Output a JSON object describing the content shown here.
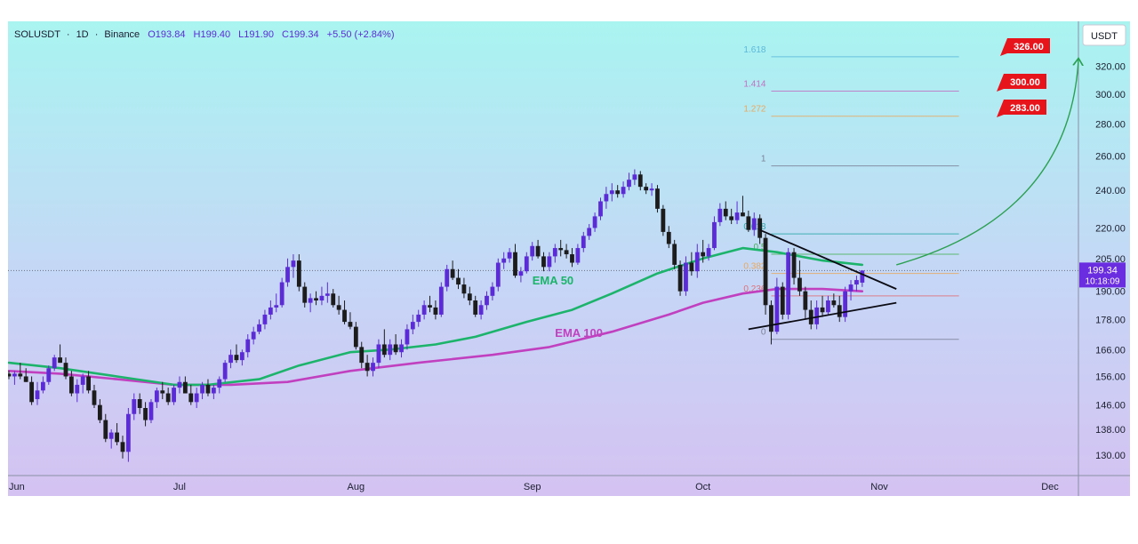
{
  "header": {
    "symbol": "SOLUSDT",
    "sep1": "·",
    "interval": "1D",
    "sep2": "·",
    "exchange": "Binance",
    "open": "O193.84",
    "high": "H199.40",
    "low": "L191.90",
    "close": "C199.34",
    "change": "+5.50 (+2.84%)"
  },
  "currency_button": "USDT",
  "colors": {
    "bull": "#5b2bd6",
    "bear": "#1c1c1c",
    "ema50": "#1cb36b",
    "ema100": "#c040c0",
    "target": "#e8141c",
    "arc": "#2ca052",
    "price_tag": "#6a2ee0"
  },
  "chart_data": {
    "type": "candlestick",
    "x_axis": {
      "type": "date",
      "ticks": [
        {
          "date": "2024-06-01",
          "label": "Jun"
        },
        {
          "date": "2024-07-01",
          "label": "Jul"
        },
        {
          "date": "2024-08-01",
          "label": "Aug"
        },
        {
          "date": "2024-09-01",
          "label": "Sep"
        },
        {
          "date": "2024-10-01",
          "label": "Oct"
        },
        {
          "date": "2024-11-01",
          "label": "Nov"
        },
        {
          "date": "2024-12-01",
          "label": "Dec"
        }
      ]
    },
    "y_axis": {
      "scale": "log",
      "range": [
        124,
        355
      ],
      "ticks": [
        {
          "value": 130,
          "label": "130.00"
        },
        {
          "value": 138,
          "label": "138.00"
        },
        {
          "value": 146,
          "label": "146.00"
        },
        {
          "value": 156,
          "label": "156.00"
        },
        {
          "value": 166,
          "label": "166.00"
        },
        {
          "value": 178,
          "label": "178.00"
        },
        {
          "value": 190,
          "label": "190.00"
        },
        {
          "value": 205,
          "label": "205.00"
        },
        {
          "value": 220,
          "label": "220.00"
        },
        {
          "value": 240,
          "label": "240.00"
        },
        {
          "value": 260,
          "label": "260.00"
        },
        {
          "value": 280,
          "label": "280.00"
        },
        {
          "value": 300,
          "label": "300.00"
        },
        {
          "value": 320,
          "label": "320.00"
        }
      ]
    },
    "ohlc": [
      [
        "2024-06-01",
        157,
        158,
        155,
        156
      ],
      [
        "2024-06-02",
        156,
        158,
        153,
        157
      ],
      [
        "2024-06-03",
        157,
        161,
        155,
        156
      ],
      [
        "2024-06-04",
        156,
        159,
        154,
        154
      ],
      [
        "2024-06-05",
        154,
        156,
        146,
        147
      ],
      [
        "2024-06-06",
        148,
        154,
        146,
        151
      ],
      [
        "2024-06-07",
        151,
        156,
        150,
        154
      ],
      [
        "2024-06-08",
        154,
        160,
        153,
        159
      ],
      [
        "2024-06-09",
        159,
        164,
        158,
        163
      ],
      [
        "2024-06-10",
        163,
        168,
        161,
        161
      ],
      [
        "2024-06-11",
        161,
        163,
        155,
        156
      ],
      [
        "2024-06-12",
        156,
        158,
        149,
        150
      ],
      [
        "2024-06-13",
        150,
        155,
        147,
        153
      ],
      [
        "2024-06-14",
        153,
        157,
        150,
        156
      ],
      [
        "2024-06-15",
        156,
        158,
        150,
        151
      ],
      [
        "2024-06-16",
        151,
        153,
        145,
        146
      ],
      [
        "2024-06-17",
        146,
        148,
        140,
        141
      ],
      [
        "2024-06-18",
        141,
        143,
        134,
        135
      ],
      [
        "2024-06-19",
        135,
        138,
        132,
        137
      ],
      [
        "2024-06-20",
        137,
        140,
        133,
        134
      ],
      [
        "2024-06-21",
        134,
        136,
        129,
        131
      ],
      [
        "2024-06-22",
        131,
        145,
        128,
        143
      ],
      [
        "2024-06-23",
        143,
        150,
        141,
        148
      ],
      [
        "2024-06-24",
        148,
        150,
        143,
        145
      ],
      [
        "2024-06-25",
        145,
        147,
        139,
        141
      ],
      [
        "2024-06-26",
        141,
        148,
        140,
        147
      ],
      [
        "2024-06-27",
        147,
        152,
        145,
        151
      ],
      [
        "2024-06-28",
        151,
        154,
        148,
        150
      ],
      [
        "2024-06-29",
        150,
        152,
        146,
        147
      ],
      [
        "2024-06-30",
        147,
        153,
        146,
        152
      ],
      [
        "2024-07-01",
        152,
        156,
        150,
        154
      ],
      [
        "2024-07-02",
        154,
        156,
        150,
        150
      ],
      [
        "2024-07-03",
        150,
        153,
        146,
        147
      ],
      [
        "2024-07-04",
        147,
        152,
        145,
        150
      ],
      [
        "2024-07-05",
        150,
        154,
        148,
        153
      ],
      [
        "2024-07-06",
        153,
        155,
        149,
        150
      ],
      [
        "2024-07-07",
        150,
        153,
        148,
        152
      ],
      [
        "2024-07-08",
        152,
        156,
        150,
        155
      ],
      [
        "2024-07-09",
        155,
        162,
        154,
        161
      ],
      [
        "2024-07-10",
        161,
        166,
        159,
        164
      ],
      [
        "2024-07-11",
        164,
        168,
        161,
        162
      ],
      [
        "2024-07-12",
        162,
        166,
        160,
        165
      ],
      [
        "2024-07-13",
        165,
        172,
        163,
        170
      ],
      [
        "2024-07-14",
        170,
        175,
        168,
        173
      ],
      [
        "2024-07-15",
        173,
        178,
        172,
        176
      ],
      [
        "2024-07-16",
        176,
        182,
        174,
        180
      ],
      [
        "2024-07-17",
        180,
        186,
        178,
        183
      ],
      [
        "2024-07-18",
        183,
        189,
        181,
        184
      ],
      [
        "2024-07-19",
        184,
        196,
        183,
        194
      ],
      [
        "2024-07-20",
        194,
        205,
        192,
        201
      ],
      [
        "2024-07-21",
        201,
        207,
        196,
        204
      ],
      [
        "2024-07-22",
        204,
        207,
        190,
        192
      ],
      [
        "2024-07-23",
        192,
        194,
        183,
        185
      ],
      [
        "2024-07-24",
        185,
        189,
        181,
        187
      ],
      [
        "2024-07-25",
        187,
        190,
        184,
        186
      ],
      [
        "2024-07-26",
        186,
        192,
        184,
        188
      ],
      [
        "2024-07-27",
        188,
        194,
        185,
        189
      ],
      [
        "2024-07-28",
        189,
        191,
        183,
        184
      ],
      [
        "2024-07-29",
        184,
        188,
        180,
        182
      ],
      [
        "2024-07-30",
        182,
        186,
        176,
        177
      ],
      [
        "2024-07-31",
        177,
        181,
        174,
        175
      ],
      [
        "2024-08-01",
        175,
        177,
        166,
        167
      ],
      [
        "2024-08-02",
        167,
        169,
        159,
        161
      ],
      [
        "2024-08-03",
        161,
        164,
        156,
        158
      ],
      [
        "2024-08-04",
        158,
        163,
        156,
        161
      ],
      [
        "2024-08-05",
        161,
        170,
        159,
        168
      ],
      [
        "2024-08-06",
        168,
        174,
        163,
        164
      ],
      [
        "2024-08-07",
        164,
        170,
        162,
        168
      ],
      [
        "2024-08-08",
        168,
        172,
        164,
        165
      ],
      [
        "2024-08-09",
        165,
        170,
        163,
        168
      ],
      [
        "2024-08-10",
        168,
        176,
        166,
        174
      ],
      [
        "2024-08-11",
        174,
        180,
        172,
        177
      ],
      [
        "2024-08-12",
        177,
        182,
        175,
        180
      ],
      [
        "2024-08-13",
        180,
        186,
        178,
        184
      ],
      [
        "2024-08-14",
        184,
        188,
        181,
        183
      ],
      [
        "2024-08-15",
        183,
        186,
        178,
        180
      ],
      [
        "2024-08-16",
        180,
        194,
        179,
        192
      ],
      [
        "2024-08-17",
        192,
        202,
        190,
        200
      ],
      [
        "2024-08-18",
        200,
        204,
        195,
        196
      ],
      [
        "2024-08-19",
        196,
        200,
        191,
        193
      ],
      [
        "2024-08-20",
        193,
        196,
        187,
        189
      ],
      [
        "2024-08-21",
        189,
        192,
        184,
        186
      ],
      [
        "2024-08-22",
        186,
        188,
        179,
        180
      ],
      [
        "2024-08-23",
        180,
        186,
        178,
        184
      ],
      [
        "2024-08-24",
        184,
        190,
        182,
        188
      ],
      [
        "2024-08-25",
        188,
        194,
        186,
        192
      ],
      [
        "2024-08-26",
        192,
        205,
        190,
        203
      ],
      [
        "2024-08-27",
        203,
        208,
        200,
        205
      ],
      [
        "2024-08-28",
        205,
        210,
        203,
        208
      ],
      [
        "2024-08-29",
        208,
        212,
        196,
        197
      ],
      [
        "2024-08-30",
        197,
        201,
        194,
        199
      ],
      [
        "2024-08-31",
        199,
        208,
        198,
        206
      ],
      [
        "2024-09-01",
        206,
        213,
        204,
        211
      ],
      [
        "2024-09-02",
        211,
        214,
        205,
        206
      ],
      [
        "2024-09-03",
        206,
        208,
        199,
        201
      ],
      [
        "2024-09-04",
        201,
        208,
        199,
        206
      ],
      [
        "2024-09-05",
        206,
        212,
        203,
        210
      ],
      [
        "2024-09-06",
        210,
        214,
        206,
        209
      ],
      [
        "2024-09-07",
        209,
        212,
        205,
        207
      ],
      [
        "2024-09-08",
        207,
        210,
        201,
        203
      ],
      [
        "2024-09-09",
        203,
        212,
        202,
        210
      ],
      [
        "2024-09-10",
        210,
        218,
        208,
        216
      ],
      [
        "2024-09-11",
        216,
        222,
        214,
        220
      ],
      [
        "2024-09-12",
        220,
        228,
        218,
        226
      ],
      [
        "2024-09-13",
        226,
        236,
        224,
        234
      ],
      [
        "2024-09-14",
        234,
        242,
        230,
        238
      ],
      [
        "2024-09-15",
        238,
        244,
        234,
        240
      ],
      [
        "2024-09-16",
        240,
        243,
        236,
        238
      ],
      [
        "2024-09-17",
        238,
        245,
        236,
        242
      ],
      [
        "2024-09-18",
        242,
        250,
        240,
        246
      ],
      [
        "2024-09-19",
        246,
        252,
        243,
        249
      ],
      [
        "2024-09-20",
        249,
        251,
        240,
        242
      ],
      [
        "2024-09-21",
        242,
        244,
        238,
        240
      ],
      [
        "2024-09-22",
        240,
        244,
        237,
        241
      ],
      [
        "2024-09-23",
        241,
        243,
        228,
        230
      ],
      [
        "2024-09-24",
        230,
        232,
        216,
        218
      ],
      [
        "2024-09-25",
        218,
        221,
        210,
        212
      ],
      [
        "2024-09-26",
        212,
        214,
        200,
        202
      ],
      [
        "2024-09-27",
        202,
        204,
        188,
        190
      ],
      [
        "2024-09-28",
        190,
        206,
        188,
        203
      ],
      [
        "2024-09-29",
        203,
        208,
        197,
        199
      ],
      [
        "2024-09-30",
        199,
        212,
        196,
        208
      ],
      [
        "2024-10-01",
        208,
        214,
        203,
        206
      ],
      [
        "2024-10-02",
        206,
        212,
        204,
        210
      ],
      [
        "2024-10-03",
        210,
        226,
        209,
        223
      ],
      [
        "2024-10-04",
        223,
        233,
        221,
        230
      ],
      [
        "2024-10-05",
        230,
        234,
        224,
        226
      ],
      [
        "2024-10-06",
        226,
        230,
        222,
        224
      ],
      [
        "2024-10-07",
        224,
        234,
        222,
        228
      ],
      [
        "2024-10-08",
        228,
        237,
        226,
        226
      ],
      [
        "2024-10-09",
        226,
        229,
        218,
        219
      ],
      [
        "2024-10-10",
        219,
        228,
        216,
        225
      ],
      [
        "2024-10-11",
        225,
        227,
        212,
        215
      ],
      [
        "2024-10-12",
        215,
        217,
        180,
        184
      ],
      [
        "2024-10-13",
        184,
        186,
        168,
        173
      ],
      [
        "2024-10-14",
        173,
        196,
        172,
        192
      ],
      [
        "2024-10-15",
        192,
        194,
        178,
        180
      ],
      [
        "2024-10-16",
        180,
        210,
        178,
        208
      ],
      [
        "2024-10-17",
        208,
        210,
        193,
        196
      ],
      [
        "2024-10-18",
        196,
        204,
        188,
        190
      ],
      [
        "2024-10-19",
        190,
        192,
        178,
        182
      ],
      [
        "2024-10-20",
        182,
        186,
        174,
        176
      ],
      [
        "2024-10-21",
        176,
        186,
        174,
        183
      ],
      [
        "2024-10-22",
        183,
        188,
        179,
        181
      ],
      [
        "2024-10-23",
        181,
        188,
        180,
        186
      ],
      [
        "2024-10-24",
        186,
        189,
        183,
        184
      ],
      [
        "2024-10-25",
        184,
        188,
        177,
        179
      ],
      [
        "2024-10-26",
        179,
        192,
        177,
        190
      ],
      [
        "2024-10-27",
        190,
        195,
        186,
        193
      ],
      [
        "2024-10-28",
        193,
        197,
        190,
        195
      ],
      [
        "2024-10-29",
        193.84,
        199.4,
        191.9,
        199.34
      ]
    ],
    "ema50": [
      [
        "2024-06-01",
        161
      ],
      [
        "2024-06-10",
        159
      ],
      [
        "2024-06-20",
        156
      ],
      [
        "2024-06-30",
        153
      ],
      [
        "2024-07-06",
        153
      ],
      [
        "2024-07-15",
        155
      ],
      [
        "2024-07-22",
        160
      ],
      [
        "2024-07-31",
        165
      ],
      [
        "2024-08-07",
        166
      ],
      [
        "2024-08-15",
        168
      ],
      [
        "2024-08-22",
        171
      ],
      [
        "2024-08-31",
        177
      ],
      [
        "2024-09-08",
        182
      ],
      [
        "2024-09-15",
        189
      ],
      [
        "2024-09-23",
        198
      ],
      [
        "2024-10-01",
        205
      ],
      [
        "2024-10-08",
        210
      ],
      [
        "2024-10-14",
        208
      ],
      [
        "2024-10-22",
        204
      ],
      [
        "2024-10-29",
        202
      ]
    ],
    "ema100": [
      [
        "2024-06-01",
        158
      ],
      [
        "2024-06-10",
        157
      ],
      [
        "2024-06-20",
        155
      ],
      [
        "2024-06-30",
        153
      ],
      [
        "2024-07-10",
        153
      ],
      [
        "2024-07-20",
        154
      ],
      [
        "2024-07-31",
        158
      ],
      [
        "2024-08-12",
        161
      ],
      [
        "2024-08-25",
        164
      ],
      [
        "2024-09-04",
        167
      ],
      [
        "2024-09-15",
        173
      ],
      [
        "2024-09-25",
        180
      ],
      [
        "2024-10-01",
        185
      ],
      [
        "2024-10-08",
        189
      ],
      [
        "2024-10-14",
        191
      ],
      [
        "2024-10-22",
        191
      ],
      [
        "2024-10-29",
        190
      ]
    ],
    "fib": {
      "start": "2024-10-13",
      "end": "2024-11-15",
      "levels": [
        {
          "label": "0",
          "value": 170
        },
        {
          "label": "0.236",
          "value": 188
        },
        {
          "label": "0.382",
          "value": 198
        },
        {
          "label": "0.5",
          "value": 207
        },
        {
          "label": "0.618",
          "value": 217
        },
        {
          "label": "1",
          "value": 254
        },
        {
          "label": "1.272",
          "value": 285
        },
        {
          "label": "1.414",
          "value": 302
        },
        {
          "label": "1.618",
          "value": 327
        }
      ]
    },
    "triangle": {
      "upper": [
        [
          "2024-10-11",
          219
        ],
        [
          "2024-11-04",
          191
        ]
      ],
      "lower": [
        [
          "2024-10-09",
          174
        ],
        [
          "2024-11-04",
          185
        ]
      ]
    },
    "projection": {
      "from": [
        "2024-11-04",
        202
      ],
      "to": [
        "2024-12-06",
        325
      ]
    },
    "targets": [
      {
        "label": "326.00",
        "value": 326
      },
      {
        "label": "300.00",
        "value": 300
      },
      {
        "label": "283.00",
        "value": 283
      }
    ],
    "current_price": {
      "label": "199.34",
      "value": 199.34,
      "countdown": "10:18:09"
    },
    "annotations": [
      {
        "label": "EMA 50",
        "date": "2024-09-01",
        "value": 193
      },
      {
        "label": "EMA 100",
        "date": "2024-09-05",
        "value": 171
      }
    ]
  }
}
